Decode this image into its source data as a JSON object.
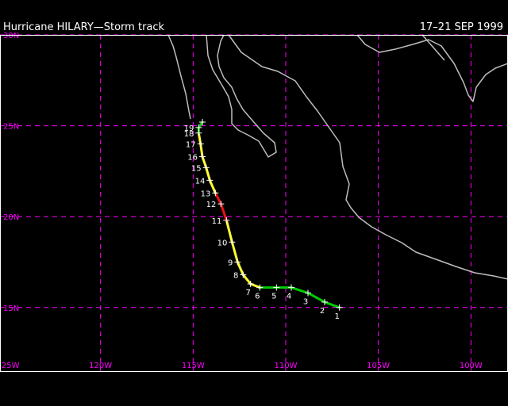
{
  "title": "Hurricane HILARY—Storm track",
  "date_range": "17–21 SEP 1999",
  "colors": {
    "grid": "#ff00ff",
    "coast": "#bdbdbd",
    "frame": "#ffffff",
    "tropical_depression": "#00cc00",
    "tropical_storm": "#ffff33",
    "hurricane": "#ee1111"
  },
  "map": {
    "lon_range": [
      -125,
      -98
    ],
    "lat_range": [
      11.5,
      30
    ],
    "lat_ticks": [
      {
        "value": 30,
        "label": "30N"
      },
      {
        "value": 25,
        "label": "25N"
      },
      {
        "value": 20,
        "label": "20N"
      },
      {
        "value": 15,
        "label": "15N"
      }
    ],
    "lon_ticks": [
      {
        "value": -125,
        "label": "125W"
      },
      {
        "value": -120,
        "label": "120W"
      },
      {
        "value": -115,
        "label": "115W"
      },
      {
        "value": -110,
        "label": "110W"
      },
      {
        "value": -105,
        "label": "105W"
      },
      {
        "value": -100,
        "label": "100W"
      }
    ]
  },
  "track": [
    {
      "label": "1",
      "lon": -107.1,
      "lat": 15.0,
      "status": "tropical_depression"
    },
    {
      "label": "2",
      "lon": -107.9,
      "lat": 15.3,
      "status": "tropical_depression"
    },
    {
      "label": "3",
      "lon": -108.8,
      "lat": 15.8,
      "status": "tropical_depression"
    },
    {
      "label": "4",
      "lon": -109.7,
      "lat": 16.1,
      "status": "tropical_depression"
    },
    {
      "label": "5",
      "lon": -110.5,
      "lat": 16.1,
      "status": "tropical_depression"
    },
    {
      "label": "6",
      "lon": -111.4,
      "lat": 16.1,
      "status": "tropical_depression"
    },
    {
      "label": "7",
      "lon": -111.9,
      "lat": 16.3,
      "status": "tropical_storm"
    },
    {
      "label": "8",
      "lon": -112.3,
      "lat": 16.8,
      "status": "tropical_storm"
    },
    {
      "label": "9",
      "lon": -112.6,
      "lat": 17.5,
      "status": "tropical_storm"
    },
    {
      "label": "10",
      "lon": -112.9,
      "lat": 18.6,
      "status": "tropical_storm"
    },
    {
      "label": "11",
      "lon": -113.2,
      "lat": 19.8,
      "status": "tropical_storm"
    },
    {
      "label": "12",
      "lon": -113.5,
      "lat": 20.7,
      "status": "hurricane"
    },
    {
      "label": "13",
      "lon": -113.8,
      "lat": 21.3,
      "status": "hurricane"
    },
    {
      "label": "14",
      "lon": -114.1,
      "lat": 22.0,
      "status": "tropical_storm"
    },
    {
      "label": "15",
      "lon": -114.3,
      "lat": 22.7,
      "status": "tropical_storm"
    },
    {
      "label": "16",
      "lon": -114.5,
      "lat": 23.3,
      "status": "tropical_storm"
    },
    {
      "label": "17",
      "lon": -114.6,
      "lat": 24.0,
      "status": "tropical_storm"
    },
    {
      "label": "18",
      "lon": -114.7,
      "lat": 24.6,
      "status": "tropical_storm"
    },
    {
      "label": "19",
      "lon": -114.7,
      "lat": 24.9,
      "status": "tropical_depression"
    },
    {
      "label": "",
      "lon": -114.5,
      "lat": 25.2,
      "status": "tropical_depression"
    }
  ]
}
